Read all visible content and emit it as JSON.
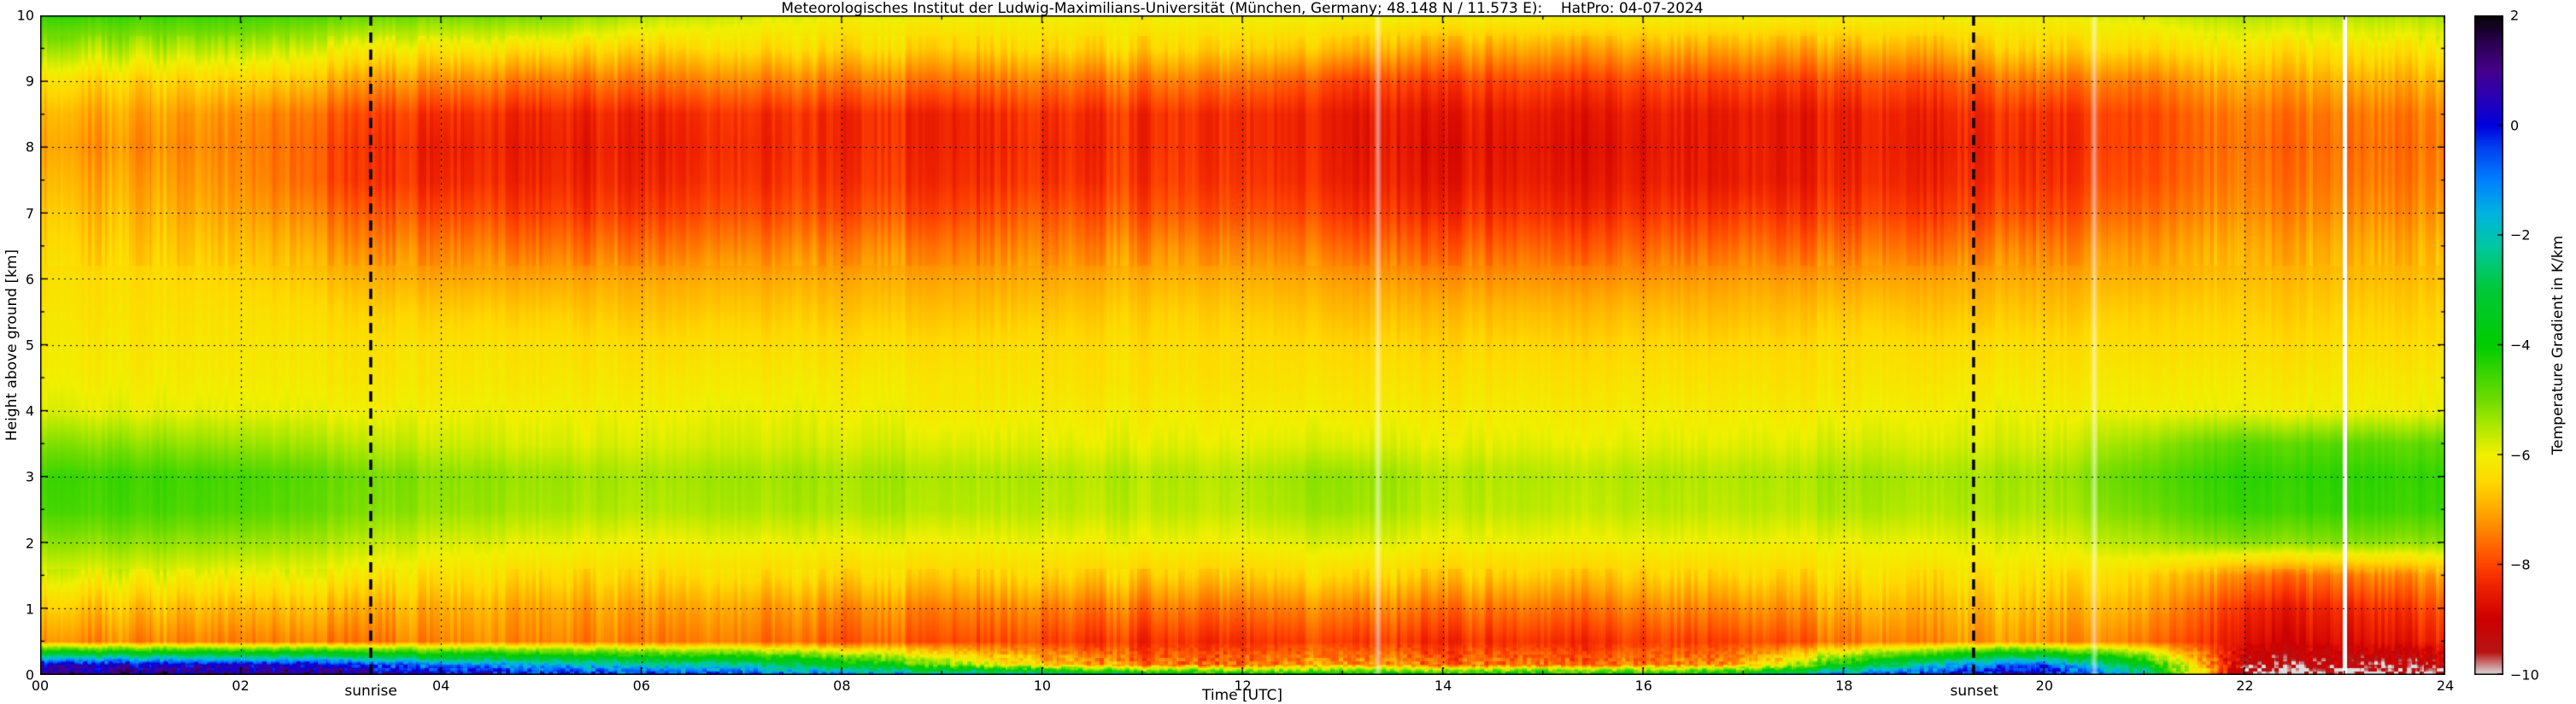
{
  "title": "Meteorologisches Institut der Ludwig-Maximilians-Universität (München, Germany; 48.148 N / 11.573 E):    HatPro: 04-07-2024",
  "axes": {
    "x_label": "Time [UTC]",
    "y_label": "Height above ground [km]",
    "x_range": [
      0,
      24
    ],
    "y_range": [
      0,
      10
    ],
    "x_tick_values": [
      0,
      2,
      4,
      6,
      8,
      10,
      12,
      14,
      16,
      18,
      20,
      22,
      24
    ],
    "x_tick_labels": [
      "00",
      "02",
      "04",
      "06",
      "08",
      "10",
      "12",
      "14",
      "16",
      "18",
      "20",
      "22",
      "24"
    ],
    "y_tick_values": [
      0,
      1,
      2,
      3,
      4,
      5,
      6,
      7,
      8,
      9,
      10
    ],
    "y_tick_labels": [
      "0",
      "1",
      "2",
      "3",
      "4",
      "5",
      "6",
      "7",
      "8",
      "9",
      "10"
    ],
    "grid": "dotted black, vertical every 2 h, horizontal every 1 km"
  },
  "colorbar": {
    "label": "Temperature Gradient in K/km",
    "range": [
      -10,
      2
    ],
    "tick_values": [
      2,
      0,
      -2,
      -4,
      -6,
      -8,
      -10
    ],
    "tick_labels": [
      "2",
      "0",
      "−2",
      "−4",
      "−6",
      "−8",
      "−10"
    ]
  },
  "annotations": {
    "sunrise": {
      "label": "sunrise",
      "time_utc": 3.3
    },
    "sunset": {
      "label": "sunset",
      "time_utc": 19.3
    }
  },
  "chart_data": {
    "type": "heatmap",
    "quantity": "Temperature Gradient in K/km",
    "x_hours": [
      0,
      1,
      2,
      3,
      4,
      5,
      6,
      7,
      8,
      9,
      10,
      11,
      12,
      13,
      14,
      15,
      16,
      17,
      18,
      19,
      20,
      21,
      22,
      23,
      24
    ],
    "heights_km": [
      0,
      0.15,
      0.5,
      1,
      1.5,
      2,
      2.5,
      3,
      3.5,
      4,
      4.5,
      5,
      5.5,
      6,
      6.5,
      7,
      7.5,
      8,
      8.5,
      9,
      9.5,
      10
    ],
    "gradient_K_per_km": [
      [
        0.8,
        1.2,
        1.0,
        0.8,
        0.3,
        0.0,
        -0.2,
        -0.5,
        -1.0,
        -1.5,
        -2.0,
        -3.0,
        -3.5,
        -3.5,
        -3.5,
        -3.5,
        -3.5,
        -3.0,
        -1.0,
        0.0,
        0.5,
        -2.0,
        -10,
        -10,
        -10
      ],
      [
        0.2,
        0.3,
        0.2,
        0.0,
        -1.0,
        -1.5,
        -2.0,
        -2.5,
        -3.5,
        -5.0,
        -6.5,
        -7.5,
        -7.5,
        -7.0,
        -7.5,
        -7.5,
        -7.5,
        -7.0,
        -4.0,
        -1.5,
        -0.5,
        -3.5,
        -9.5,
        -9.5,
        -9.5
      ],
      [
        -7.4,
        -7.3,
        -7.4,
        -7.5,
        -7.3,
        -7.3,
        -7.4,
        -7.6,
        -7.8,
        -7.8,
        -8.0,
        -8.2,
        -8.2,
        -8.0,
        -8.2,
        -8.2,
        -8.1,
        -8.0,
        -7.6,
        -7.2,
        -7.2,
        -7.5,
        -8.8,
        -8.8,
        -8.5
      ],
      [
        -6.8,
        -6.7,
        -6.8,
        -6.9,
        -6.9,
        -7.0,
        -7.0,
        -7.2,
        -7.3,
        -7.3,
        -7.4,
        -7.5,
        -7.5,
        -7.3,
        -7.5,
        -7.5,
        -7.4,
        -7.3,
        -7.0,
        -6.8,
        -6.8,
        -7.0,
        -8.4,
        -8.4,
        -8.0
      ],
      [
        -6.0,
        -5.9,
        -6.0,
        -6.1,
        -6.3,
        -6.4,
        -6.4,
        -6.5,
        -6.5,
        -6.5,
        -6.5,
        -6.6,
        -6.6,
        -6.4,
        -6.6,
        -6.6,
        -6.6,
        -6.5,
        -6.4,
        -6.3,
        -6.3,
        -6.5,
        -7.5,
        -7.5,
        -7.2
      ],
      [
        -5.3,
        -5.2,
        -5.3,
        -5.5,
        -5.8,
        -5.9,
        -6.0,
        -6.0,
        -6.0,
        -6.0,
        -6.0,
        -6.0,
        -6.0,
        -5.8,
        -6.0,
        -6.0,
        -6.0,
        -6.0,
        -6.0,
        -5.9,
        -5.9,
        -5.5,
        -5.2,
        -5.2,
        -5.3
      ],
      [
        -4.7,
        -4.6,
        -4.7,
        -5.0,
        -5.3,
        -5.4,
        -5.5,
        -5.5,
        -5.5,
        -5.5,
        -5.6,
        -5.6,
        -5.6,
        -5.3,
        -5.6,
        -5.6,
        -5.6,
        -5.6,
        -5.5,
        -5.5,
        -5.5,
        -5.0,
        -4.5,
        -4.5,
        -4.6
      ],
      [
        -4.6,
        -4.5,
        -4.6,
        -4.9,
        -5.2,
        -5.3,
        -5.4,
        -5.4,
        -5.4,
        -5.4,
        -5.5,
        -5.5,
        -5.5,
        -5.2,
        -5.5,
        -5.5,
        -5.5,
        -5.5,
        -5.4,
        -5.4,
        -5.4,
        -4.8,
        -4.4,
        -4.4,
        -4.5
      ],
      [
        -5.2,
        -5.2,
        -5.3,
        -5.5,
        -5.7,
        -5.8,
        -5.8,
        -5.8,
        -5.8,
        -5.8,
        -5.9,
        -5.9,
        -5.9,
        -5.8,
        -5.9,
        -5.9,
        -5.9,
        -5.9,
        -5.8,
        -5.8,
        -5.8,
        -5.3,
        -4.8,
        -4.8,
        -4.9
      ],
      [
        -5.9,
        -5.9,
        -5.9,
        -6.0,
        -6.0,
        -6.0,
        -6.0,
        -6.0,
        -6.0,
        -6.1,
        -6.1,
        -6.1,
        -6.1,
        -6.1,
        -6.1,
        -6.1,
        -6.1,
        -6.1,
        -6.1,
        -6.0,
        -6.0,
        -6.0,
        -6.0,
        -6.0,
        -6.0
      ],
      [
        -6.1,
        -6.1,
        -6.1,
        -6.2,
        -6.2,
        -6.2,
        -6.2,
        -6.2,
        -6.2,
        -6.2,
        -6.3,
        -6.3,
        -6.3,
        -6.3,
        -6.3,
        -6.3,
        -6.3,
        -6.3,
        -6.3,
        -6.2,
        -6.2,
        -6.2,
        -6.2,
        -6.2,
        -6.2
      ],
      [
        -6.2,
        -6.2,
        -6.2,
        -6.3,
        -6.3,
        -6.3,
        -6.4,
        -6.4,
        -6.4,
        -6.4,
        -6.4,
        -6.4,
        -6.4,
        -6.5,
        -6.5,
        -6.5,
        -6.5,
        -6.5,
        -6.4,
        -6.4,
        -6.4,
        -6.4,
        -6.4,
        -6.4,
        -6.4
      ],
      [
        -6.3,
        -6.3,
        -6.3,
        -6.5,
        -6.6,
        -6.6,
        -6.7,
        -6.7,
        -6.7,
        -6.7,
        -6.7,
        -6.6,
        -6.6,
        -6.8,
        -6.8,
        -6.8,
        -6.8,
        -6.8,
        -6.7,
        -6.7,
        -6.7,
        -6.6,
        -6.6,
        -6.6,
        -6.6
      ],
      [
        -6.4,
        -6.4,
        -6.5,
        -6.8,
        -7.0,
        -7.0,
        -7.0,
        -7.0,
        -7.0,
        -7.0,
        -7.0,
        -6.9,
        -6.9,
        -7.1,
        -7.2,
        -7.2,
        -7.2,
        -7.1,
        -7.1,
        -7.0,
        -7.0,
        -6.9,
        -6.8,
        -6.8,
        -6.8
      ],
      [
        -6.6,
        -6.6,
        -6.7,
        -7.2,
        -7.4,
        -7.5,
        -7.5,
        -7.5,
        -7.4,
        -7.4,
        -7.4,
        -7.3,
        -7.3,
        -7.6,
        -7.7,
        -7.7,
        -7.7,
        -7.6,
        -7.6,
        -7.5,
        -7.4,
        -7.2,
        -7.0,
        -7.0,
        -7.0
      ],
      [
        -6.8,
        -6.8,
        -7.0,
        -7.6,
        -7.9,
        -8.0,
        -8.0,
        -8.0,
        -7.9,
        -7.9,
        -7.8,
        -7.8,
        -7.8,
        -8.1,
        -8.2,
        -8.2,
        -8.2,
        -8.1,
        -8.1,
        -8.0,
        -7.9,
        -7.6,
        -7.3,
        -7.3,
        -7.3
      ],
      [
        -7.0,
        -7.0,
        -7.2,
        -8.0,
        -8.3,
        -8.3,
        -8.3,
        -8.3,
        -8.2,
        -8.2,
        -8.2,
        -8.1,
        -8.1,
        -8.4,
        -8.5,
        -8.5,
        -8.5,
        -8.5,
        -8.4,
        -8.3,
        -8.2,
        -7.9,
        -7.5,
        -7.5,
        -7.5
      ],
      [
        -7.2,
        -7.2,
        -7.3,
        -8.0,
        -8.4,
        -8.4,
        -8.4,
        -8.4,
        -8.3,
        -8.3,
        -8.3,
        -8.2,
        -8.2,
        -8.5,
        -8.6,
        -8.6,
        -8.6,
        -8.5,
        -8.5,
        -8.4,
        -8.3,
        -8.0,
        -7.6,
        -7.6,
        -7.6
      ],
      [
        -7.0,
        -7.0,
        -7.2,
        -7.8,
        -8.2,
        -8.3,
        -8.3,
        -8.3,
        -8.3,
        -8.3,
        -8.2,
        -8.2,
        -8.2,
        -8.5,
        -8.5,
        -8.5,
        -8.5,
        -8.5,
        -8.5,
        -8.3,
        -8.2,
        -8.0,
        -7.5,
        -7.5,
        -7.5
      ],
      [
        -6.5,
        -6.5,
        -6.5,
        -7.0,
        -7.3,
        -7.5,
        -7.5,
        -7.5,
        -7.5,
        -7.5,
        -7.5,
        -7.5,
        -7.5,
        -8.0,
        -8.0,
        -8.0,
        -8.0,
        -8.0,
        -8.0,
        -7.8,
        -7.5,
        -7.5,
        -7.0,
        -7.0,
        -7.0
      ],
      [
        -5.5,
        -5.5,
        -5.5,
        -6.0,
        -6.2,
        -6.3,
        -6.5,
        -6.5,
        -6.5,
        -6.5,
        -6.5,
        -6.5,
        -6.5,
        -6.8,
        -7.0,
        -7.0,
        -7.0,
        -7.0,
        -7.0,
        -6.8,
        -6.5,
        -6.5,
        -6.3,
        -6.3,
        -6.3
      ],
      [
        -4.5,
        -4.5,
        -4.5,
        -4.8,
        -5.0,
        -5.0,
        -5.5,
        -5.8,
        -6.0,
        -6.0,
        -6.0,
        -6.0,
        -6.0,
        -6.0,
        -6.0,
        -6.0,
        -6.0,
        -6.0,
        -6.0,
        -6.0,
        -6.0,
        -5.8,
        -5.5,
        -5.5,
        -5.5
      ]
    ],
    "colormap_stops": [
      [
        -10.0,
        "#dcdcdc"
      ],
      [
        -9.6,
        "#b81414"
      ],
      [
        -9.0,
        "#cc0000"
      ],
      [
        -8.4,
        "#ee2200"
      ],
      [
        -8.0,
        "#ff4400"
      ],
      [
        -7.5,
        "#ff7700"
      ],
      [
        -7.0,
        "#ffaa00"
      ],
      [
        -6.5,
        "#ffd800"
      ],
      [
        -6.0,
        "#f0f000"
      ],
      [
        -5.5,
        "#b0e800"
      ],
      [
        -5.0,
        "#70dc00"
      ],
      [
        -4.0,
        "#00cc00"
      ],
      [
        -3.0,
        "#00c838"
      ],
      [
        -2.2,
        "#00c8a0"
      ],
      [
        -1.6,
        "#00b4e0"
      ],
      [
        -1.0,
        "#0080ff"
      ],
      [
        -0.4,
        "#0040f0"
      ],
      [
        0.0,
        "#0000dc"
      ],
      [
        0.5,
        "#2800b4"
      ],
      [
        1.0,
        "#46008c"
      ],
      [
        1.5,
        "#2a0050"
      ],
      [
        2.0,
        "#050505"
      ]
    ],
    "data_gaps_utc": [
      23.0
    ],
    "light_columns_utc": [
      13.35,
      20.5
    ]
  }
}
